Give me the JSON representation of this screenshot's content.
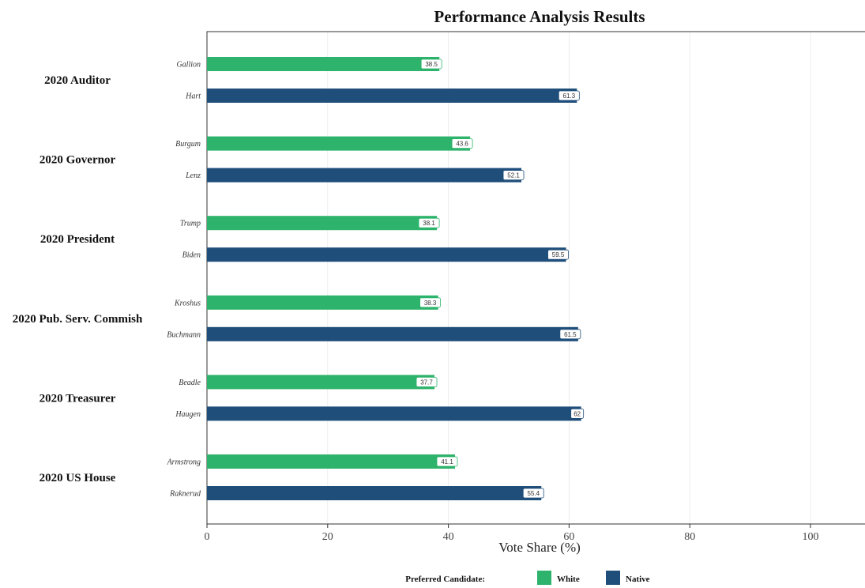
{
  "chart_data": {
    "type": "bar",
    "orientation": "horizontal",
    "title": "Performance Analysis Results",
    "xlabel": "Vote Share (%)",
    "ylabel": "",
    "xlim": [
      0,
      110
    ],
    "xticks": [
      0,
      20,
      40,
      60,
      80,
      100
    ],
    "grid": true,
    "legend": {
      "title": "Preferred Candidate:",
      "position": "bottom",
      "entries": [
        {
          "name": "White",
          "color": "#2db36b"
        },
        {
          "name": "Native",
          "color": "#1f4e7a"
        }
      ]
    },
    "groups": [
      {
        "label": "2020 Auditor",
        "bars": [
          {
            "candidate": "Gallion",
            "series": "White",
            "value": 38.5,
            "label": "38.5"
          },
          {
            "candidate": "Hart",
            "series": "Native",
            "value": 61.3,
            "label": "61.3"
          }
        ]
      },
      {
        "label": "2020 Governor",
        "bars": [
          {
            "candidate": "Burgum",
            "series": "White",
            "value": 43.6,
            "label": "43.6"
          },
          {
            "candidate": "Lenz",
            "series": "Native",
            "value": 52.1,
            "label": "52.1"
          }
        ]
      },
      {
        "label": "2020 President",
        "bars": [
          {
            "candidate": "Trump",
            "series": "White",
            "value": 38.1,
            "label": "38.1"
          },
          {
            "candidate": "Biden",
            "series": "Native",
            "value": 59.5,
            "label": "59.5"
          }
        ]
      },
      {
        "label": "2020 Pub. Serv. Commish",
        "bars": [
          {
            "candidate": "Kroshus",
            "series": "White",
            "value": 38.3,
            "label": "38.3"
          },
          {
            "candidate": "Buchmann",
            "series": "Native",
            "value": 61.5,
            "label": "61.5"
          }
        ]
      },
      {
        "label": "2020 Treasurer",
        "bars": [
          {
            "candidate": "Beadle",
            "series": "White",
            "value": 37.7,
            "label": "37.7"
          },
          {
            "candidate": "Haugen",
            "series": "Native",
            "value": 62,
            "label": "62"
          }
        ]
      },
      {
        "label": "2020 US House",
        "bars": [
          {
            "candidate": "Armstrong",
            "series": "White",
            "value": 41.1,
            "label": "41.1"
          },
          {
            "candidate": "Raknerud",
            "series": "Native",
            "value": 55.4,
            "label": "55.4"
          }
        ]
      }
    ]
  }
}
